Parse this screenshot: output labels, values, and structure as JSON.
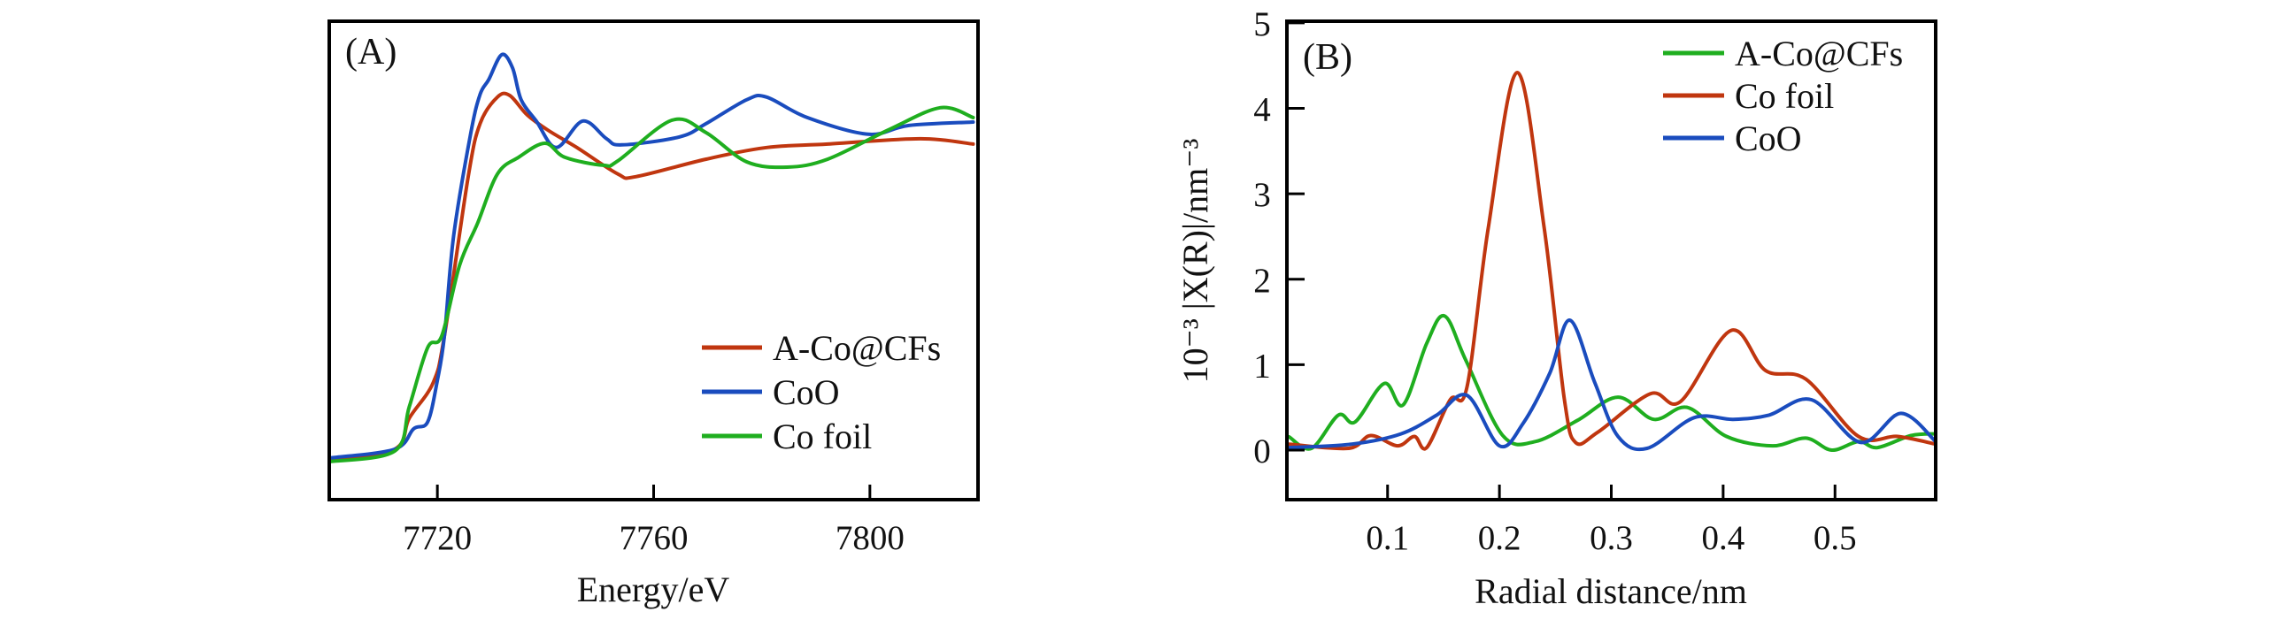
{
  "chart_data": [
    {
      "type": "line",
      "panel_label": "(A)",
      "title": "",
      "xlabel": "Energy/eV",
      "ylabel": "",
      "xlim": [
        7700,
        7820
      ],
      "ylim": [
        -0.15,
        1.653
      ],
      "xticks": [
        7720,
        7760,
        7800
      ],
      "xtick_labels": [
        "7720",
        "7760",
        "7800"
      ],
      "yticks": [],
      "grid": false,
      "legend_position": "bottom-right",
      "series": [
        {
          "name": "A-Co@CFs",
          "color": "#c0360f",
          "x": [
            7700,
            7712.1,
            7714.8,
            7719.2,
            7721.3,
            7725.7,
            7727.9,
            7731.1,
            7733.4,
            7736.6,
            7740.4,
            7745.8,
            7753.4,
            7756.7,
            7769.7,
            7780.9,
            7792.2,
            7809.3,
            7819.1
          ],
          "y": [
            0,
            0.04,
            0.157,
            0.29,
            0.467,
            1.067,
            1.267,
            1.367,
            1.373,
            1.3,
            1.243,
            1.177,
            1.077,
            1.067,
            1.133,
            1.177,
            1.19,
            1.21,
            1.19
          ]
        },
        {
          "name": "CoO",
          "color": "#1a4cbe",
          "x": [
            7700,
            7712.1,
            7715.6,
            7718.2,
            7720.0,
            7721.3,
            7723.0,
            7726.2,
            7727.9,
            7729.5,
            7731.9,
            7733.9,
            7735.5,
            7738.3,
            7742.0,
            7746.9,
            7751.3,
            7754.1,
            7764.8,
            7769.7,
            7777.2,
            7780.9,
            7788.4,
            7799.7,
            7807.2,
            7819.1
          ],
          "y": [
            0.007,
            0.04,
            0.117,
            0.143,
            0.3,
            0.467,
            0.843,
            1.233,
            1.377,
            1.433,
            1.527,
            1.477,
            1.357,
            1.277,
            1.177,
            1.277,
            1.21,
            1.187,
            1.217,
            1.267,
            1.357,
            1.367,
            1.29,
            1.227,
            1.26,
            1.273
          ]
        },
        {
          "name": "Co foil",
          "color": "#1fae1f",
          "x": [
            7700,
            7712.1,
            7714.8,
            7718.2,
            7720.8,
            7724.1,
            7727.4,
            7731.1,
            7735.0,
            7739.9,
            7743.6,
            7750.7,
            7753.4,
            7763.4,
            7769.7,
            7777.2,
            7784.7,
            7792.2,
            7803.4,
            7813.0,
            7819.1
          ],
          "y": [
            -0.007,
            0.033,
            0.2,
            0.423,
            0.467,
            0.733,
            0.89,
            1.077,
            1.14,
            1.193,
            1.14,
            1.11,
            1.127,
            1.28,
            1.233,
            1.123,
            1.103,
            1.133,
            1.243,
            1.327,
            1.29
          ]
        }
      ]
    },
    {
      "type": "line",
      "panel_label": "(B)",
      "title": "",
      "xlabel": "Radial distance/nm",
      "ylabel": "10⁻³ |X(R)|/nm⁻³",
      "xlim": [
        0.01,
        0.59
      ],
      "ylim": [
        -0.58,
        5.02
      ],
      "xticks": [
        0.1,
        0.2,
        0.3,
        0.4,
        0.5
      ],
      "xtick_labels": [
        "0.1",
        "0.2",
        "0.3",
        "0.4",
        "0.5"
      ],
      "yticks": [
        0,
        1,
        2,
        3,
        4,
        5
      ],
      "ytick_labels": [
        "0",
        "1",
        "2",
        "3",
        "4",
        "5"
      ],
      "grid": false,
      "legend_position": "top-right",
      "series": [
        {
          "name": "A-Co@CFs",
          "color": "#1fae1f",
          "x": [
            0.012,
            0.032,
            0.056,
            0.071,
            0.097,
            0.114,
            0.135,
            0.151,
            0.17,
            0.203,
            0.232,
            0.27,
            0.306,
            0.338,
            0.368,
            0.403,
            0.444,
            0.474,
            0.497,
            0.521,
            0.538,
            0.568,
            0.59
          ],
          "y": [
            0.155,
            0.02,
            0.41,
            0.33,
            0.78,
            0.53,
            1.25,
            1.57,
            1.05,
            0.17,
            0.1,
            0.35,
            0.62,
            0.36,
            0.5,
            0.16,
            0.05,
            0.14,
            0.0,
            0.1,
            0.03,
            0.17,
            0.19
          ]
        },
        {
          "name": "Co foil",
          "color": "#c0360f",
          "x": [
            0.012,
            0.065,
            0.085,
            0.109,
            0.124,
            0.135,
            0.156,
            0.171,
            0.19,
            0.216,
            0.24,
            0.258,
            0.268,
            0.288,
            0.335,
            0.362,
            0.407,
            0.438,
            0.474,
            0.521,
            0.556,
            0.59
          ],
          "y": [
            0.07,
            0.02,
            0.17,
            0.05,
            0.16,
            0.03,
            0.59,
            0.74,
            2.6,
            4.42,
            2.6,
            0.6,
            0.09,
            0.21,
            0.66,
            0.57,
            1.4,
            0.93,
            0.83,
            0.16,
            0.16,
            0.07
          ]
        },
        {
          "name": "CoO",
          "color": "#1a4cbe",
          "x": [
            0.012,
            0.068,
            0.112,
            0.144,
            0.171,
            0.2,
            0.221,
            0.245,
            0.263,
            0.285,
            0.306,
            0.332,
            0.374,
            0.409,
            0.441,
            0.479,
            0.523,
            0.559,
            0.59
          ],
          "y": [
            0.03,
            0.07,
            0.19,
            0.41,
            0.64,
            0.05,
            0.31,
            0.9,
            1.52,
            0.8,
            0.16,
            0.02,
            0.38,
            0.36,
            0.41,
            0.59,
            0.09,
            0.43,
            0.1
          ]
        }
      ]
    }
  ]
}
